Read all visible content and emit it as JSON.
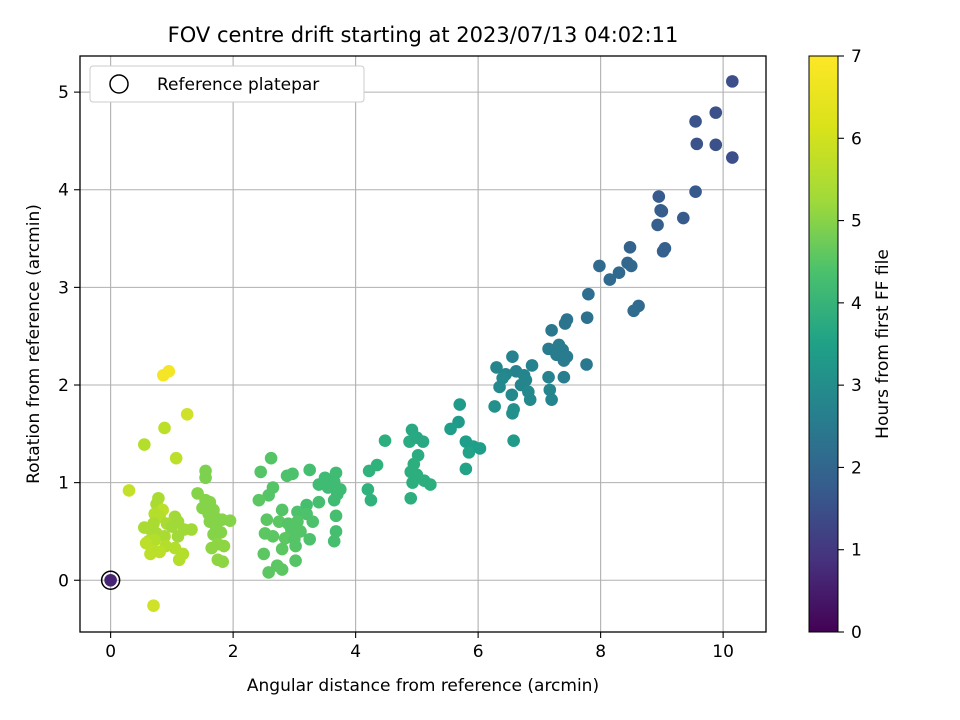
{
  "chart_data": {
    "type": "scatter",
    "title": "FOV centre drift starting at 2023/07/13 04:02:11",
    "xlabel": "Angular distance from reference (arcmin)",
    "ylabel": "Rotation from reference (arcmin)",
    "xlim": [
      -0.5,
      10.7
    ],
    "ylim": [
      -0.53,
      5.37
    ],
    "xticks": [
      0,
      2,
      4,
      6,
      8,
      10
    ],
    "yticks": [
      0,
      1,
      2,
      3,
      4,
      5
    ],
    "grid": true,
    "colorbar": {
      "label": "Hours from first FF file",
      "range": [
        0,
        7
      ],
      "ticks": [
        0,
        1,
        2,
        3,
        4,
        5,
        6,
        7
      ],
      "colormap": "viridis"
    },
    "legend": {
      "position": "upper-left",
      "entries": [
        "Reference platepar"
      ]
    },
    "reference_point": {
      "x": 0,
      "y": 0
    },
    "points": [
      {
        "x": 10.15,
        "y": 5.11,
        "c": 1.7
      },
      {
        "x": 9.88,
        "y": 4.79,
        "c": 1.75
      },
      {
        "x": 9.55,
        "y": 4.7,
        "c": 1.8
      },
      {
        "x": 9.57,
        "y": 4.47,
        "c": 1.8
      },
      {
        "x": 9.88,
        "y": 4.46,
        "c": 1.75
      },
      {
        "x": 10.15,
        "y": 4.33,
        "c": 1.7
      },
      {
        "x": 9.55,
        "y": 3.98,
        "c": 1.95
      },
      {
        "x": 8.95,
        "y": 3.93,
        "c": 2.0
      },
      {
        "x": 8.98,
        "y": 3.79,
        "c": 2.05
      },
      {
        "x": 9.0,
        "y": 3.78,
        "c": 2.05
      },
      {
        "x": 9.35,
        "y": 3.71,
        "c": 2.0
      },
      {
        "x": 8.93,
        "y": 3.64,
        "c": 2.1
      },
      {
        "x": 8.48,
        "y": 3.41,
        "c": 2.2
      },
      {
        "x": 9.05,
        "y": 3.4,
        "c": 2.15
      },
      {
        "x": 9.02,
        "y": 3.37,
        "c": 2.15
      },
      {
        "x": 8.44,
        "y": 3.25,
        "c": 2.3
      },
      {
        "x": 8.5,
        "y": 3.22,
        "c": 2.3
      },
      {
        "x": 7.98,
        "y": 3.22,
        "c": 2.4
      },
      {
        "x": 8.3,
        "y": 3.15,
        "c": 2.35
      },
      {
        "x": 8.15,
        "y": 3.08,
        "c": 2.4
      },
      {
        "x": 7.8,
        "y": 2.93,
        "c": 2.5
      },
      {
        "x": 8.62,
        "y": 2.81,
        "c": 2.4
      },
      {
        "x": 8.54,
        "y": 2.76,
        "c": 2.45
      },
      {
        "x": 7.78,
        "y": 2.69,
        "c": 2.6
      },
      {
        "x": 7.45,
        "y": 2.67,
        "c": 2.7
      },
      {
        "x": 7.42,
        "y": 2.63,
        "c": 2.7
      },
      {
        "x": 7.2,
        "y": 2.56,
        "c": 2.8
      },
      {
        "x": 7.15,
        "y": 2.37,
        "c": 2.9
      },
      {
        "x": 7.32,
        "y": 2.41,
        "c": 2.9
      },
      {
        "x": 7.38,
        "y": 2.36,
        "c": 2.9
      },
      {
        "x": 7.28,
        "y": 2.31,
        "c": 2.9
      },
      {
        "x": 7.45,
        "y": 2.29,
        "c": 2.9
      },
      {
        "x": 7.4,
        "y": 2.25,
        "c": 2.9
      },
      {
        "x": 6.56,
        "y": 2.29,
        "c": 3.1
      },
      {
        "x": 6.3,
        "y": 2.18,
        "c": 3.2
      },
      {
        "x": 6.88,
        "y": 2.2,
        "c": 3.1
      },
      {
        "x": 7.77,
        "y": 2.21,
        "c": 2.8
      },
      {
        "x": 6.62,
        "y": 2.14,
        "c": 3.1
      },
      {
        "x": 6.45,
        "y": 2.11,
        "c": 3.2
      },
      {
        "x": 6.75,
        "y": 2.1,
        "c": 3.2
      },
      {
        "x": 6.78,
        "y": 2.05,
        "c": 3.2
      },
      {
        "x": 6.7,
        "y": 2.0,
        "c": 3.2
      },
      {
        "x": 6.4,
        "y": 2.07,
        "c": 3.3
      },
      {
        "x": 7.4,
        "y": 2.08,
        "c": 3.0
      },
      {
        "x": 7.15,
        "y": 2.08,
        "c": 3.1
      },
      {
        "x": 6.35,
        "y": 1.98,
        "c": 3.3
      },
      {
        "x": 6.55,
        "y": 1.9,
        "c": 3.3
      },
      {
        "x": 6.82,
        "y": 1.93,
        "c": 3.3
      },
      {
        "x": 6.85,
        "y": 1.85,
        "c": 3.3
      },
      {
        "x": 7.17,
        "y": 1.95,
        "c": 3.2
      },
      {
        "x": 7.2,
        "y": 1.85,
        "c": 3.2
      },
      {
        "x": 6.27,
        "y": 1.78,
        "c": 3.5
      },
      {
        "x": 6.58,
        "y": 1.75,
        "c": 3.5
      },
      {
        "x": 6.56,
        "y": 1.71,
        "c": 3.5
      },
      {
        "x": 5.7,
        "y": 1.8,
        "c": 3.8
      },
      {
        "x": 5.68,
        "y": 1.62,
        "c": 3.8
      },
      {
        "x": 5.55,
        "y": 1.55,
        "c": 3.9
      },
      {
        "x": 6.58,
        "y": 1.43,
        "c": 3.8
      },
      {
        "x": 5.8,
        "y": 1.42,
        "c": 3.9
      },
      {
        "x": 5.92,
        "y": 1.37,
        "c": 3.9
      },
      {
        "x": 5.85,
        "y": 1.31,
        "c": 4.0
      },
      {
        "x": 6.03,
        "y": 1.35,
        "c": 3.9
      },
      {
        "x": 5.8,
        "y": 1.14,
        "c": 4.0
      },
      {
        "x": 4.92,
        "y": 1.54,
        "c": 4.2
      },
      {
        "x": 4.88,
        "y": 1.42,
        "c": 4.3
      },
      {
        "x": 5.0,
        "y": 1.46,
        "c": 4.2
      },
      {
        "x": 5.1,
        "y": 1.42,
        "c": 4.2
      },
      {
        "x": 4.48,
        "y": 1.43,
        "c": 4.4
      },
      {
        "x": 5.02,
        "y": 1.28,
        "c": 4.3
      },
      {
        "x": 4.95,
        "y": 1.19,
        "c": 4.4
      },
      {
        "x": 4.9,
        "y": 1.11,
        "c": 4.4
      },
      {
        "x": 5.0,
        "y": 1.08,
        "c": 4.4
      },
      {
        "x": 4.35,
        "y": 1.18,
        "c": 4.5
      },
      {
        "x": 4.22,
        "y": 1.12,
        "c": 4.5
      },
      {
        "x": 4.93,
        "y": 1.0,
        "c": 4.4
      },
      {
        "x": 5.12,
        "y": 1.02,
        "c": 4.4
      },
      {
        "x": 5.22,
        "y": 0.98,
        "c": 4.4
      },
      {
        "x": 4.2,
        "y": 0.93,
        "c": 4.5
      },
      {
        "x": 4.25,
        "y": 0.82,
        "c": 4.5
      },
      {
        "x": 4.9,
        "y": 0.84,
        "c": 4.4
      },
      {
        "x": 3.68,
        "y": 1.1,
        "c": 4.8
      },
      {
        "x": 3.65,
        "y": 1.01,
        "c": 4.8
      },
      {
        "x": 3.5,
        "y": 1.05,
        "c": 4.8
      },
      {
        "x": 3.4,
        "y": 0.98,
        "c": 4.8
      },
      {
        "x": 3.55,
        "y": 0.95,
        "c": 4.8
      },
      {
        "x": 3.75,
        "y": 0.93,
        "c": 4.8
      },
      {
        "x": 3.7,
        "y": 0.88,
        "c": 4.8
      },
      {
        "x": 3.65,
        "y": 0.82,
        "c": 4.8
      },
      {
        "x": 3.4,
        "y": 0.8,
        "c": 4.9
      },
      {
        "x": 3.2,
        "y": 0.77,
        "c": 4.9
      },
      {
        "x": 3.68,
        "y": 0.66,
        "c": 4.9
      },
      {
        "x": 3.68,
        "y": 0.5,
        "c": 4.9
      },
      {
        "x": 3.65,
        "y": 0.4,
        "c": 4.9
      },
      {
        "x": 3.25,
        "y": 1.13,
        "c": 4.9
      },
      {
        "x": 2.97,
        "y": 1.09,
        "c": 5.0
      },
      {
        "x": 2.88,
        "y": 1.07,
        "c": 5.0
      },
      {
        "x": 2.62,
        "y": 1.25,
        "c": 5.1
      },
      {
        "x": 2.45,
        "y": 1.11,
        "c": 5.1
      },
      {
        "x": 2.65,
        "y": 0.95,
        "c": 5.1
      },
      {
        "x": 2.58,
        "y": 0.87,
        "c": 5.1
      },
      {
        "x": 2.42,
        "y": 0.82,
        "c": 5.2
      },
      {
        "x": 2.8,
        "y": 0.72,
        "c": 5.1
      },
      {
        "x": 3.05,
        "y": 0.7,
        "c": 5.0
      },
      {
        "x": 3.2,
        "y": 0.68,
        "c": 5.0
      },
      {
        "x": 2.55,
        "y": 0.62,
        "c": 5.2
      },
      {
        "x": 2.75,
        "y": 0.6,
        "c": 5.2
      },
      {
        "x": 2.9,
        "y": 0.58,
        "c": 5.1
      },
      {
        "x": 3.05,
        "y": 0.6,
        "c": 5.1
      },
      {
        "x": 3.3,
        "y": 0.6,
        "c": 5.0
      },
      {
        "x": 2.95,
        "y": 0.52,
        "c": 5.1
      },
      {
        "x": 3.1,
        "y": 0.5,
        "c": 5.1
      },
      {
        "x": 2.52,
        "y": 0.48,
        "c": 5.2
      },
      {
        "x": 2.65,
        "y": 0.45,
        "c": 5.2
      },
      {
        "x": 2.85,
        "y": 0.43,
        "c": 5.2
      },
      {
        "x": 3.0,
        "y": 0.42,
        "c": 5.1
      },
      {
        "x": 3.25,
        "y": 0.42,
        "c": 5.0
      },
      {
        "x": 2.8,
        "y": 0.32,
        "c": 5.2
      },
      {
        "x": 3.02,
        "y": 0.35,
        "c": 5.1
      },
      {
        "x": 2.5,
        "y": 0.27,
        "c": 5.2
      },
      {
        "x": 3.02,
        "y": 0.2,
        "c": 5.1
      },
      {
        "x": 2.72,
        "y": 0.15,
        "c": 5.2
      },
      {
        "x": 2.8,
        "y": 0.11,
        "c": 5.2
      },
      {
        "x": 2.58,
        "y": 0.08,
        "c": 5.2
      },
      {
        "x": 1.55,
        "y": 1.12,
        "c": 5.6
      },
      {
        "x": 1.55,
        "y": 1.05,
        "c": 5.6
      },
      {
        "x": 1.42,
        "y": 0.89,
        "c": 5.7
      },
      {
        "x": 1.55,
        "y": 0.82,
        "c": 5.7
      },
      {
        "x": 1.62,
        "y": 0.8,
        "c": 5.7
      },
      {
        "x": 1.5,
        "y": 0.74,
        "c": 5.7
      },
      {
        "x": 1.68,
        "y": 0.72,
        "c": 5.7
      },
      {
        "x": 1.6,
        "y": 0.68,
        "c": 5.7
      },
      {
        "x": 1.7,
        "y": 0.65,
        "c": 5.7
      },
      {
        "x": 1.82,
        "y": 0.62,
        "c": 5.7
      },
      {
        "x": 1.95,
        "y": 0.61,
        "c": 5.7
      },
      {
        "x": 1.62,
        "y": 0.6,
        "c": 5.7
      },
      {
        "x": 1.72,
        "y": 0.55,
        "c": 5.7
      },
      {
        "x": 1.8,
        "y": 0.49,
        "c": 5.7
      },
      {
        "x": 1.68,
        "y": 0.47,
        "c": 5.7
      },
      {
        "x": 1.75,
        "y": 0.37,
        "c": 5.8
      },
      {
        "x": 1.85,
        "y": 0.35,
        "c": 5.8
      },
      {
        "x": 1.65,
        "y": 0.33,
        "c": 5.8
      },
      {
        "x": 1.75,
        "y": 0.21,
        "c": 5.8
      },
      {
        "x": 1.83,
        "y": 0.19,
        "c": 5.8
      },
      {
        "x": 1.25,
        "y": 1.7,
        "c": 6.5
      },
      {
        "x": 0.88,
        "y": 1.56,
        "c": 6.3
      },
      {
        "x": 0.55,
        "y": 1.39,
        "c": 6.2
      },
      {
        "x": 1.07,
        "y": 1.25,
        "c": 6.3
      },
      {
        "x": 0.3,
        "y": 0.92,
        "c": 6.4
      },
      {
        "x": 0.78,
        "y": 0.84,
        "c": 6.1
      },
      {
        "x": 0.75,
        "y": 0.78,
        "c": 6.1
      },
      {
        "x": 0.85,
        "y": 0.72,
        "c": 6.3
      },
      {
        "x": 0.72,
        "y": 0.68,
        "c": 6.2
      },
      {
        "x": 0.8,
        "y": 0.65,
        "c": 6.2
      },
      {
        "x": 1.05,
        "y": 0.65,
        "c": 6.0
      },
      {
        "x": 1.1,
        "y": 0.6,
        "c": 6.0
      },
      {
        "x": 0.92,
        "y": 0.58,
        "c": 6.1
      },
      {
        "x": 0.7,
        "y": 0.58,
        "c": 6.1
      },
      {
        "x": 0.55,
        "y": 0.54,
        "c": 6.1
      },
      {
        "x": 0.65,
        "y": 0.52,
        "c": 6.1
      },
      {
        "x": 1.0,
        "y": 0.55,
        "c": 6.0
      },
      {
        "x": 1.2,
        "y": 0.52,
        "c": 6.0
      },
      {
        "x": 1.32,
        "y": 0.52,
        "c": 6.0
      },
      {
        "x": 0.75,
        "y": 0.48,
        "c": 6.1
      },
      {
        "x": 0.88,
        "y": 0.45,
        "c": 6.1
      },
      {
        "x": 1.1,
        "y": 0.45,
        "c": 6.0
      },
      {
        "x": 0.62,
        "y": 0.4,
        "c": 6.2
      },
      {
        "x": 0.72,
        "y": 0.41,
        "c": 6.2
      },
      {
        "x": 0.58,
        "y": 0.38,
        "c": 6.3
      },
      {
        "x": 0.9,
        "y": 0.35,
        "c": 6.2
      },
      {
        "x": 1.05,
        "y": 0.33,
        "c": 6.2
      },
      {
        "x": 0.7,
        "y": 0.3,
        "c": 6.3
      },
      {
        "x": 0.8,
        "y": 0.29,
        "c": 6.3
      },
      {
        "x": 0.65,
        "y": 0.27,
        "c": 6.3
      },
      {
        "x": 1.18,
        "y": 0.27,
        "c": 6.2
      },
      {
        "x": 1.12,
        "y": 0.21,
        "c": 6.2
      },
      {
        "x": 0.7,
        "y": -0.26,
        "c": 6.5
      },
      {
        "x": 0.86,
        "y": 2.1,
        "c": 6.9
      },
      {
        "x": 0.95,
        "y": 2.14,
        "c": 6.9
      },
      {
        "x": 0.0,
        "y": 0.0,
        "c": 0.7
      }
    ]
  }
}
